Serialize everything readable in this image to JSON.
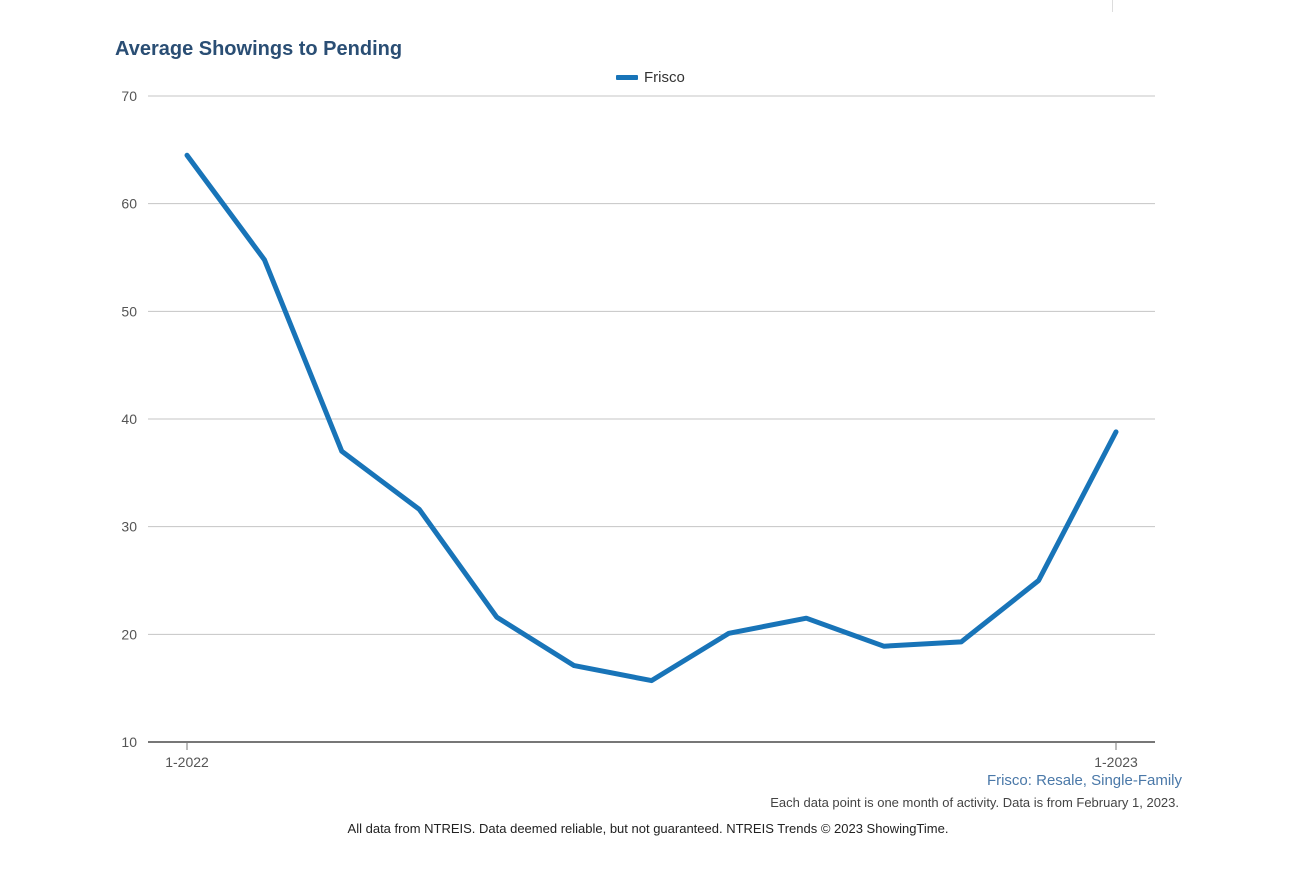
{
  "chart_data": {
    "type": "line",
    "title": "Average Showings to Pending",
    "legend": [
      "Frisco"
    ],
    "legend_position": "top-center",
    "x": [
      "1-2022",
      "2-2022",
      "3-2022",
      "4-2022",
      "5-2022",
      "6-2022",
      "7-2022",
      "8-2022",
      "9-2022",
      "10-2022",
      "11-2022",
      "12-2022",
      "1-2023"
    ],
    "x_tick_labels": [
      "1-2022",
      "1-2023"
    ],
    "series": [
      {
        "name": "Frisco",
        "color": "#1874b8",
        "values": [
          64.5,
          54.8,
          37.0,
          31.6,
          21.6,
          17.1,
          15.7,
          20.1,
          21.5,
          18.9,
          19.3,
          25.0,
          38.8
        ]
      }
    ],
    "ylim": [
      10,
      70
    ],
    "y_ticks": [
      10,
      20,
      30,
      40,
      50,
      60,
      70
    ],
    "grid": true,
    "xlabel": "",
    "ylabel": ""
  },
  "captions": {
    "subtitle": "Frisco: Resale, Single-Family",
    "note": "Each data point is one month of activity. Data is from February 1, 2023.",
    "footer": "All data from NTREIS. Data deemed reliable, but not guaranteed. NTREIS Trends © 2023 ShowingTime."
  }
}
